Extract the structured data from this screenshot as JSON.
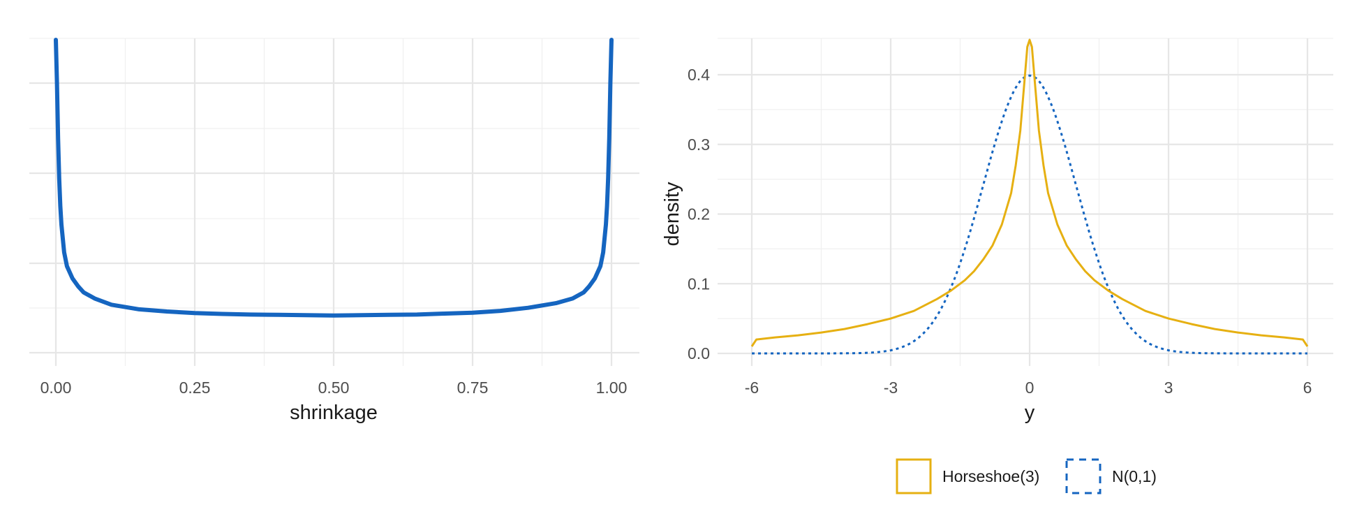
{
  "chart_data": [
    {
      "type": "line",
      "xlabel": "shrinkage",
      "ylabel": "",
      "xlim": [
        0,
        1
      ],
      "x_ticks": [
        "0.00",
        "0.25",
        "0.50",
        "0.75",
        "1.00"
      ],
      "y_ticks": [],
      "grid": true,
      "series": [
        {
          "color": "#1565c0",
          "x": [
            0.0,
            0.002,
            0.004,
            0.006,
            0.008,
            0.01,
            0.015,
            0.02,
            0.03,
            0.04,
            0.05,
            0.07,
            0.1,
            0.15,
            0.2,
            0.25,
            0.3,
            0.35,
            0.4,
            0.45,
            0.5,
            0.55,
            0.6,
            0.65,
            0.7,
            0.75,
            0.8,
            0.85,
            0.9,
            0.93,
            0.95,
            0.96,
            0.97,
            0.98,
            0.985,
            0.99,
            0.992,
            0.994,
            0.996,
            0.998,
            1.0
          ],
          "y": [
            1.0,
            0.86,
            0.68,
            0.55,
            0.46,
            0.4,
            0.31,
            0.265,
            0.225,
            0.2,
            0.18,
            0.16,
            0.14,
            0.125,
            0.118,
            0.113,
            0.11,
            0.108,
            0.107,
            0.106,
            0.105,
            0.106,
            0.107,
            0.108,
            0.111,
            0.114,
            0.12,
            0.13,
            0.145,
            0.16,
            0.18,
            0.2,
            0.225,
            0.265,
            0.31,
            0.4,
            0.46,
            0.55,
            0.68,
            0.86,
            1.0
          ]
        }
      ]
    },
    {
      "type": "line",
      "xlabel": "y",
      "ylabel": "density",
      "xlim": [
        -6.6,
        6.6
      ],
      "ylim": [
        -0.02,
        0.45
      ],
      "x_ticks": [
        -6,
        -3,
        0,
        3,
        6
      ],
      "y_ticks": [
        0.0,
        0.1,
        0.2,
        0.3,
        0.4
      ],
      "y_tick_labels": [
        "0.0",
        "0.1",
        "0.2",
        "0.3",
        "0.4"
      ],
      "grid": true,
      "legend": "bottom",
      "series": [
        {
          "name": "Horseshoe(3)",
          "color": "#e6b012",
          "dash": "solid",
          "x": [
            -6,
            -5.9,
            -5.5,
            -5,
            -4.5,
            -4,
            -3.5,
            -3,
            -2.5,
            -2,
            -1.7,
            -1.4,
            -1.2,
            -1,
            -0.8,
            -0.6,
            -0.4,
            -0.3,
            -0.2,
            -0.1,
            -0.05,
            0,
            0.05,
            0.1,
            0.2,
            0.3,
            0.4,
            0.6,
            0.8,
            1,
            1.2,
            1.4,
            1.7,
            2,
            2.5,
            3,
            3.5,
            4,
            4.5,
            5,
            5.5,
            5.9,
            6
          ],
          "y": [
            0.01,
            0.02,
            0.023,
            0.026,
            0.03,
            0.035,
            0.042,
            0.05,
            0.061,
            0.078,
            0.09,
            0.105,
            0.118,
            0.135,
            0.155,
            0.185,
            0.23,
            0.27,
            0.32,
            0.4,
            0.44,
            0.45,
            0.44,
            0.4,
            0.32,
            0.27,
            0.23,
            0.185,
            0.155,
            0.135,
            0.118,
            0.105,
            0.09,
            0.078,
            0.061,
            0.05,
            0.042,
            0.035,
            0.03,
            0.026,
            0.023,
            0.02,
            0.01
          ]
        },
        {
          "name": "N(0,1)",
          "color": "#1565c0",
          "dash": "dotted"
        }
      ]
    }
  ]
}
